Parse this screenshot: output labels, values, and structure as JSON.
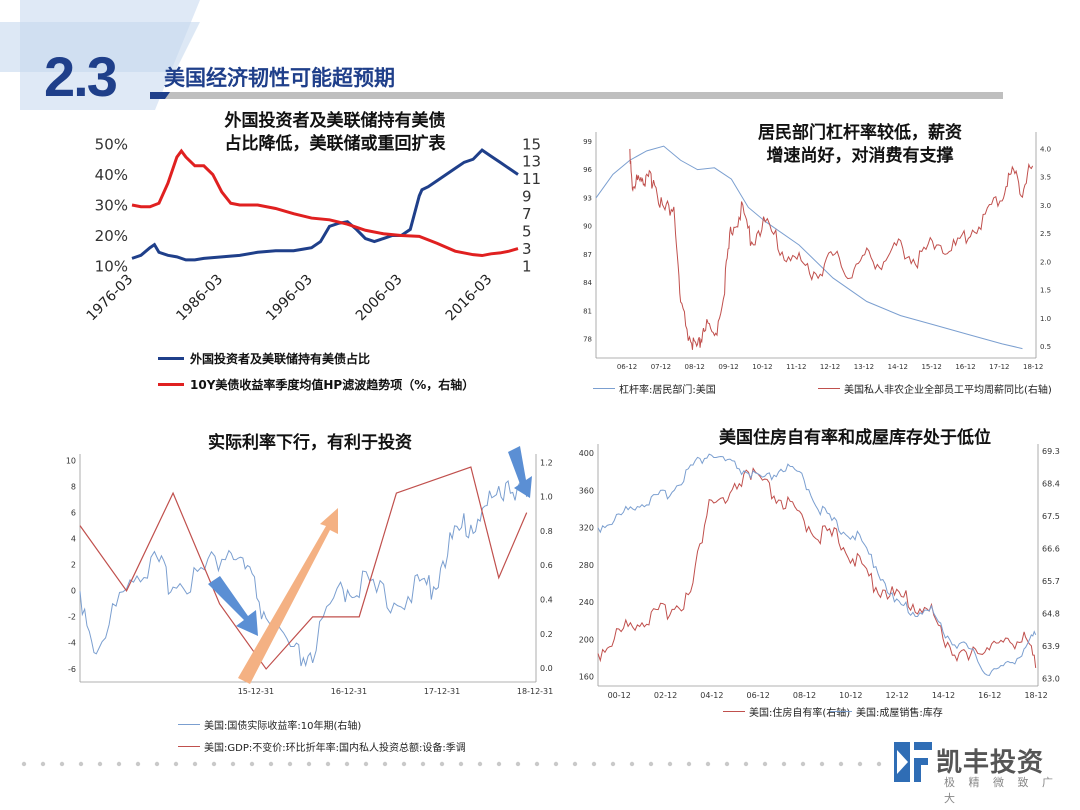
{
  "slide": {
    "number": "2.3",
    "title": "美国经济韧性可能超预期",
    "brand": "凯丰投资",
    "slogan": "极 精 微 致 广 大"
  },
  "colors": {
    "navy": "#1f3f8a",
    "red": "#e02020",
    "blue_thin": "#7b9fd0",
    "red_thin": "#c0504d",
    "arrow_blue": "#5b8fd4",
    "arrow_orange": "#f4b183"
  },
  "chart_data": [
    {
      "type": "line",
      "title": "外国投资者及美联储持有美债占比降低，美联储或重回扩表",
      "title_lines": [
        "外国投资者及美联储持有美债",
        "占比降低，美联储或重回扩表"
      ],
      "x_ticks": [
        "1976-03",
        "1986-03",
        "1996-03",
        "2006-03",
        "2016-03"
      ],
      "y_left_ticks": [
        "50%",
        "40%",
        "30%",
        "20%",
        "10%"
      ],
      "y_right_ticks": [
        "15",
        "13",
        "11",
        "9",
        "7",
        "5",
        "3",
        "1"
      ],
      "ylim_left": [
        10,
        50
      ],
      "ylim_right": [
        1,
        15
      ],
      "xlim": [
        1976,
        2019
      ],
      "series": [
        {
          "name": "外国投资者及美联储持有美债占比",
          "axis": "left",
          "color": "#1f3f8a",
          "x": [
            1976,
            1977,
            1978,
            1978.5,
            1979,
            1980,
            1981,
            1982,
            1983,
            1984,
            1986,
            1988,
            1990,
            1992,
            1994,
            1995,
            1996,
            1997,
            1998,
            1999,
            2000,
            2001,
            2002,
            2003,
            2004,
            2005,
            2006,
            2007,
            2008,
            2008.3,
            2009,
            2010,
            2011,
            2012,
            2013,
            2014,
            2015,
            2016,
            2017,
            2018,
            2019
          ],
          "y": [
            12.5,
            13.5,
            16,
            17,
            14.5,
            13.5,
            13,
            12,
            12,
            12.5,
            13,
            13.5,
            14.5,
            15,
            15,
            15.5,
            16,
            18,
            23,
            24,
            24.5,
            22,
            19,
            18,
            19,
            20,
            20,
            22,
            33,
            35,
            36,
            38,
            40,
            42,
            44,
            45,
            48,
            46,
            44,
            42,
            40
          ]
        },
        {
          "name": "10Y美债收益率季度均值HP滤波趋势项（%，右轴）",
          "axis": "right",
          "color": "#e02020",
          "x": [
            1976,
            1977,
            1978,
            1979,
            1980,
            1981,
            1981.5,
            1982,
            1983,
            1984,
            1985,
            1986,
            1987,
            1988,
            1989,
            1990,
            1992,
            1994,
            1996,
            1998,
            2000,
            2002,
            2004,
            2006,
            2008,
            2010,
            2012,
            2013,
            2014,
            2015,
            2016,
            2017,
            2018,
            2019
          ],
          "y": [
            8,
            7.8,
            7.8,
            8.2,
            10.5,
            13.5,
            14.2,
            13.5,
            12.5,
            12.5,
            11.5,
            9.5,
            8.2,
            8,
            8,
            8,
            7.6,
            7,
            6.5,
            6.3,
            5.8,
            5.1,
            4.7,
            4.5,
            4.4,
            3.6,
            2.7,
            2.5,
            2.3,
            2.2,
            2.4,
            2.5,
            2.7,
            3
          ]
        }
      ]
    },
    {
      "type": "line",
      "title": "居民部门杠杆率较低，薪资增速尚好，对消费有支撑",
      "title_lines": [
        "居民部门杠杆率较低，薪资",
        "增速尚好，对消费有支撑"
      ],
      "x_ticks": [
        "06-12",
        "07-12",
        "08-12",
        "09-12",
        "10-12",
        "11-12",
        "12-12",
        "13-12",
        "14-12",
        "15-12",
        "16-12",
        "17-12",
        "18-12"
      ],
      "y_left_ticks": [
        "99",
        "96",
        "93",
        "90",
        "87",
        "84",
        "81",
        "78"
      ],
      "y_right_ticks": [
        "4.0",
        "3.5",
        "3.0",
        "2.5",
        "2.0",
        "1.5",
        "1.0",
        "0.5"
      ],
      "ylim_left": [
        76,
        100
      ],
      "ylim_right": [
        0.3,
        4.3
      ],
      "xlim": [
        2006,
        2019
      ],
      "series": [
        {
          "name": "杠杆率:居民部门:美国",
          "axis": "left",
          "color": "#7b9fd0",
          "x": [
            2006,
            2006.5,
            2007,
            2007.5,
            2008,
            2008.5,
            2009,
            2009.5,
            2010,
            2010.5,
            2011,
            2012,
            2013,
            2014,
            2015,
            2016,
            2017,
            2018,
            2018.6
          ],
          "y": [
            93,
            95.5,
            97,
            98,
            98.5,
            97,
            96,
            96.2,
            95,
            92,
            90.5,
            88,
            84.5,
            82,
            80.5,
            79.5,
            78.5,
            77.5,
            77
          ]
        },
        {
          "name": "美国私人非农企业全部员工平均周薪同比(右轴)",
          "axis": "right",
          "color": "#c0504d",
          "x": [
            2007,
            2007.1,
            2007.3,
            2007.5,
            2007.7,
            2008,
            2008.3,
            2008.5,
            2008.8,
            2009,
            2009.2,
            2009.5,
            2009.8,
            2010,
            2010.3,
            2010.6,
            2011,
            2011.5,
            2012,
            2012.5,
            2013,
            2013.5,
            2014,
            2014.5,
            2015,
            2015.5,
            2016,
            2016.5,
            2017,
            2017.5,
            2018,
            2018.3,
            2018.6,
            2018.9
          ],
          "y": [
            4.0,
            3.2,
            3.6,
            3.4,
            3.5,
            2.9,
            3.0,
            1.2,
            0.6,
            0.4,
            0.9,
            0.6,
            1.6,
            2.6,
            2.9,
            2.4,
            2.7,
            2.2,
            2.0,
            1.8,
            2.1,
            1.8,
            2.1,
            2.0,
            2.3,
            2.0,
            2.4,
            2.2,
            2.5,
            2.8,
            3.2,
            3.6,
            3.3,
            3.7
          ]
        }
      ]
    },
    {
      "type": "line",
      "title": "实际利率下行，有利于投资",
      "x_ticks": [
        "15-12-31",
        "16-12-31",
        "17-12-31",
        "18-12-31"
      ],
      "y_left_ticks": [
        "10",
        "8",
        "6",
        "4",
        "2",
        "0",
        "-2",
        "-4",
        "-6"
      ],
      "y_right_ticks": [
        "1.2",
        "1.0",
        "0.8",
        "0.6",
        "0.4",
        "0.2",
        "0.0"
      ],
      "ylim_left": [
        -7,
        10.5
      ],
      "ylim_right": [
        -0.08,
        1.25
      ],
      "xlim": [
        2014.1,
        2019
      ],
      "series": [
        {
          "name": "美国:国债实际收益率:10年期(右轴)",
          "axis": "right",
          "color": "#7b9fd0",
          "x": [
            2014.1,
            2014.3,
            2014.6,
            2014.9,
            2015.1,
            2015.4,
            2015.7,
            2015.9,
            2016.1,
            2016.4,
            2016.6,
            2016.9,
            2017.1,
            2017.4,
            2017.7,
            2017.9,
            2018.1,
            2018.3,
            2018.5,
            2018.7,
            2018.9
          ],
          "y": [
            0.45,
            0.05,
            0.55,
            0.6,
            0.5,
            0.55,
            0.7,
            0.55,
            0.3,
            0.05,
            0.1,
            0.45,
            0.5,
            0.4,
            0.45,
            0.5,
            0.75,
            0.85,
            0.95,
            1.1,
            1.0
          ]
        },
        {
          "name": "美国:GDP:不变价:环比折年率:国内私人投资总额:设备:季调",
          "axis": "left",
          "color": "#c0504d",
          "x": [
            2014.1,
            2014.6,
            2015.1,
            2015.6,
            2016.1,
            2016.6,
            2017.1,
            2017.5,
            2017.9,
            2018.3,
            2018.6,
            2018.9
          ],
          "y": [
            5,
            0,
            7.5,
            -1,
            -6,
            -2,
            -2,
            7.5,
            8.5,
            9.5,
            1,
            6
          ]
        }
      ]
    },
    {
      "type": "line",
      "title": "美国住房自有率和成屋库存处于低位",
      "x_ticks": [
        "00-12",
        "02-12",
        "04-12",
        "06-12",
        "08-12",
        "10-12",
        "12-12",
        "14-12",
        "16-12",
        "18-12"
      ],
      "y_left_ticks": [
        "400",
        "360",
        "320",
        "280",
        "240",
        "200",
        "160"
      ],
      "y_right_ticks": [
        "69.3",
        "68.4",
        "67.5",
        "66.6",
        "65.7",
        "64.8",
        "63.9",
        "63.0"
      ],
      "ylim_left": [
        150,
        410
      ],
      "ylim_right": [
        62.8,
        69.5
      ],
      "xlim": [
        2000,
        2019
      ],
      "series": [
        {
          "name": "美国:住房自有率(右轴)",
          "axis": "right",
          "color": "#c0504d",
          "x": [
            2000,
            2000.8,
            2001.6,
            2002.4,
            2003.2,
            2004,
            2004.8,
            2005.6,
            2006.4,
            2007.2,
            2008,
            2008.8,
            2009.6,
            2010.4,
            2011.2,
            2012,
            2012.8,
            2013.6,
            2014.4,
            2015.2,
            2016,
            2016.8,
            2017.6,
            2018.4,
            2018.9
          ],
          "y": [
            63.7,
            64.2,
            64.6,
            64.7,
            65.0,
            65.3,
            68.0,
            67.8,
            68.8,
            68.3,
            67.9,
            67.4,
            67.0,
            66.9,
            66.2,
            65.6,
            65.3,
            65.1,
            64.8,
            63.9,
            63.5,
            64.0,
            63.9,
            64.3,
            63.3
          ]
        },
        {
          "name": "美国:成屋销售:库存",
          "axis": "left",
          "color": "#7b9fd0",
          "x": [
            2000,
            2000.8,
            2001.6,
            2002.4,
            2003.2,
            2004,
            2004.8,
            2005.6,
            2006.4,
            2007.2,
            2008,
            2008.8,
            2009.6,
            2010.4,
            2011.2,
            2012,
            2012.8,
            2013.6,
            2014.4,
            2015.2,
            2016,
            2016.8,
            2017.6,
            2018.4,
            2018.9
          ],
          "y": [
            320,
            330,
            345,
            350,
            360,
            385,
            400,
            390,
            380,
            370,
            385,
            375,
            340,
            320,
            310,
            280,
            240,
            230,
            230,
            200,
            190,
            165,
            170,
            190,
            205
          ]
        }
      ]
    }
  ]
}
